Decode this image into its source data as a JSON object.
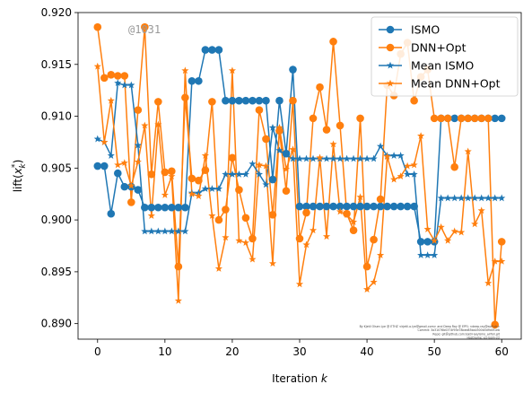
{
  "chart_data": {
    "type": "line",
    "title": "",
    "xlabel": "Iteration k",
    "ylabel": "lift(x_k*)",
    "xlim": [
      -2.9,
      62.9
    ],
    "ylim": [
      0.8885,
      0.92
    ],
    "xticks": [
      0,
      10,
      20,
      30,
      40,
      50,
      60
    ],
    "yticks": [
      0.89,
      0.895,
      0.9,
      0.905,
      0.91,
      0.915,
      0.92
    ],
    "ytick_labels": [
      "0.890",
      "0.895",
      "0.900",
      "0.905",
      "0.910",
      "0.915",
      "0.920"
    ],
    "grid": false,
    "legend_position": "top-right",
    "annotation": "@1031",
    "credits": [
      "By Kjetil Olsen Lye @ ETHZ <kjetil.o.lye@gmail.com> and Deep Ray @ EPFL <deep.ray@epfl.ch>",
      "Commit: 3a31076b0374f93e78bed85ba4500b5d9d0f1eb",
      "Repo: git@github.com:kjetil-lye/ismo_airfoil.git",
      "Hostname: eu-login-22"
    ],
    "series": [
      {
        "name": "ISMO",
        "color": "#1f77b4",
        "marker": "circle",
        "x": [
          0,
          1,
          2,
          3,
          4,
          5,
          6,
          7,
          8,
          9,
          10,
          11,
          12,
          13,
          14,
          15,
          16,
          17,
          18,
          19,
          20,
          21,
          22,
          23,
          24,
          25,
          26,
          27,
          28,
          29,
          30,
          31,
          32,
          33,
          34,
          35,
          36,
          37,
          38,
          39,
          40,
          41,
          42,
          43,
          44,
          45,
          46,
          47,
          48,
          49,
          50,
          51,
          52,
          53,
          54,
          55,
          56,
          57,
          58,
          59,
          60
        ],
        "values": [
          0.9052,
          0.9052,
          0.9006,
          0.9045,
          0.9032,
          0.9032,
          0.9029,
          0.9012,
          0.9012,
          0.9012,
          0.9012,
          0.9012,
          0.9012,
          0.9012,
          0.9134,
          0.9134,
          0.9164,
          0.9164,
          0.9164,
          0.9115,
          0.9115,
          0.9115,
          0.9115,
          0.9115,
          0.9115,
          0.9115,
          0.9039,
          0.9115,
          0.9064,
          0.9145,
          0.9013,
          0.9013,
          0.9013,
          0.9013,
          0.9013,
          0.9013,
          0.9013,
          0.9013,
          0.9013,
          0.9013,
          0.9013,
          0.9013,
          0.9013,
          0.9013,
          0.9013,
          0.9013,
          0.9013,
          0.9013,
          0.8979,
          0.8979,
          0.8979,
          0.9098,
          0.9098,
          0.9098,
          0.9098,
          0.9098,
          0.9098,
          0.9098,
          0.9098,
          0.9098,
          0.9098
        ]
      },
      {
        "name": "DNN+Opt",
        "color": "#ff7f0e",
        "marker": "circle",
        "x": [
          0,
          1,
          2,
          3,
          4,
          5,
          6,
          7,
          8,
          9,
          10,
          11,
          12,
          13,
          14,
          15,
          16,
          17,
          18,
          19,
          20,
          21,
          22,
          23,
          24,
          25,
          26,
          27,
          28,
          29,
          30,
          31,
          32,
          33,
          34,
          35,
          36,
          37,
          38,
          39,
          40,
          41,
          42,
          43,
          44,
          45,
          46,
          47,
          48,
          49,
          50,
          51,
          52,
          53,
          54,
          55,
          56,
          57,
          58,
          59,
          60
        ],
        "values": [
          0.9186,
          0.9137,
          0.914,
          0.9139,
          0.9139,
          0.9017,
          0.9106,
          0.9186,
          0.9044,
          0.9114,
          0.9046,
          0.9047,
          0.8955,
          0.9118,
          0.904,
          0.9038,
          0.9048,
          0.9114,
          0.9,
          0.901,
          0.906,
          0.9029,
          0.9002,
          0.8982,
          0.9106,
          0.9078,
          0.9005,
          0.9086,
          0.9028,
          0.9115,
          0.8982,
          0.9007,
          0.9098,
          0.9128,
          0.9087,
          0.9172,
          0.9091,
          0.9006,
          0.899,
          0.9098,
          0.8955,
          0.8981,
          0.902,
          0.913,
          0.912,
          0.916,
          0.9171,
          0.9115,
          0.9138,
          0.9145,
          0.9098,
          0.9098,
          0.9098,
          0.9051,
          0.9098,
          0.9098,
          0.9098,
          0.9098,
          0.9098,
          0.8899,
          0.8979
        ]
      },
      {
        "name": "Mean ISMO",
        "color": "#1f77b4",
        "marker": "star",
        "x": [
          0,
          1,
          2,
          3,
          4,
          5,
          6,
          7,
          8,
          9,
          10,
          11,
          12,
          13,
          14,
          15,
          16,
          17,
          18,
          19,
          20,
          21,
          22,
          23,
          24,
          25,
          26,
          27,
          28,
          29,
          30,
          31,
          32,
          33,
          34,
          35,
          36,
          37,
          38,
          39,
          40,
          41,
          42,
          43,
          44,
          45,
          46,
          47,
          48,
          49,
          50,
          51,
          52,
          53,
          54,
          55,
          56,
          57,
          58,
          59,
          60
        ],
        "values": [
          0.9078,
          0.9075,
          0.9062,
          0.9132,
          0.913,
          0.913,
          0.9072,
          0.8989,
          0.8989,
          0.8989,
          0.8989,
          0.8989,
          0.8989,
          0.8989,
          0.9026,
          0.9026,
          0.903,
          0.903,
          0.903,
          0.9044,
          0.9044,
          0.9044,
          0.9044,
          0.9054,
          0.9044,
          0.9034,
          0.9089,
          0.9067,
          0.9063,
          0.9059,
          0.9059,
          0.9059,
          0.9059,
          0.9059,
          0.9059,
          0.9059,
          0.9059,
          0.9059,
          0.9059,
          0.9059,
          0.9059,
          0.9059,
          0.9071,
          0.9062,
          0.9062,
          0.9062,
          0.9044,
          0.9044,
          0.8966,
          0.8966,
          0.8966,
          0.9021,
          0.9021,
          0.9021,
          0.9021,
          0.9021,
          0.9021,
          0.9021,
          0.9021,
          0.9021,
          0.9021
        ]
      },
      {
        "name": "Mean DNN+Opt",
        "color": "#ff7f0e",
        "marker": "star",
        "x": [
          0,
          1,
          2,
          3,
          4,
          5,
          6,
          7,
          8,
          9,
          10,
          11,
          12,
          13,
          14,
          15,
          16,
          17,
          18,
          19,
          20,
          21,
          22,
          23,
          24,
          25,
          26,
          27,
          28,
          29,
          30,
          31,
          32,
          33,
          34,
          35,
          36,
          37,
          38,
          39,
          40,
          41,
          42,
          43,
          44,
          45,
          46,
          47,
          48,
          49,
          50,
          51,
          52,
          53,
          54,
          55,
          56,
          57,
          58,
          59,
          60
        ],
        "values": [
          0.9148,
          0.9075,
          0.9115,
          0.9053,
          0.9055,
          0.9033,
          0.9056,
          0.9091,
          0.9004,
          0.9092,
          0.9024,
          0.9042,
          0.8922,
          0.9144,
          0.9025,
          0.9023,
          0.9062,
          0.9004,
          0.8953,
          0.8983,
          0.9144,
          0.898,
          0.8978,
          0.8962,
          0.9053,
          0.9052,
          0.8958,
          0.9089,
          0.9049,
          0.9068,
          0.8938,
          0.8976,
          0.899,
          0.906,
          0.8984,
          0.9073,
          0.9008,
          0.9005,
          0.8998,
          0.9022,
          0.8933,
          0.894,
          0.8966,
          0.9061,
          0.9039,
          0.9042,
          0.9052,
          0.9053,
          0.9081,
          0.8991,
          0.898,
          0.8993,
          0.898,
          0.8989,
          0.8988,
          0.9066,
          0.8996,
          0.9009,
          0.8939,
          0.896,
          0.896
        ]
      }
    ]
  }
}
